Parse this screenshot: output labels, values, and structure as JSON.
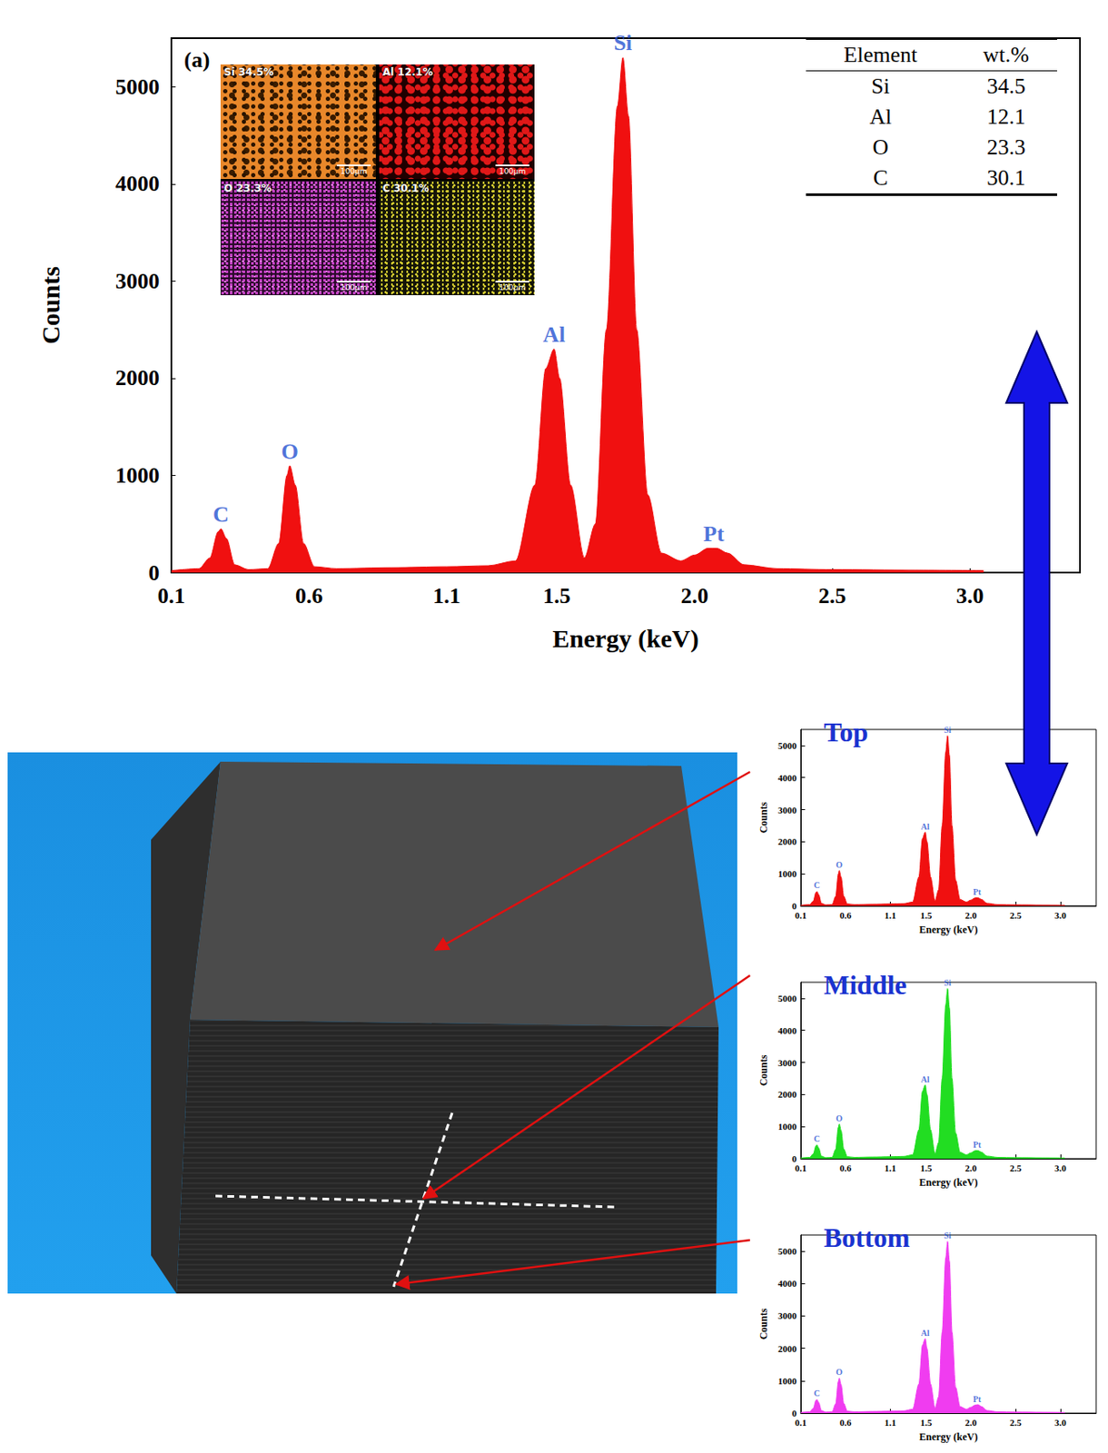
{
  "chart_data": [
    {
      "type": "area",
      "title": "(a)",
      "x_label": "Energy (keV)",
      "y_label": "Counts",
      "x": [
        0.1,
        0.2,
        0.24,
        0.27,
        0.28,
        0.3,
        0.33,
        0.38,
        0.45,
        0.49,
        0.52,
        0.53,
        0.55,
        0.58,
        0.62,
        0.7,
        0.9,
        1.1,
        1.25,
        1.35,
        1.42,
        1.46,
        1.49,
        1.51,
        1.55,
        1.6,
        1.64,
        1.68,
        1.72,
        1.74,
        1.76,
        1.79,
        1.83,
        1.88,
        1.95,
        2.0,
        2.05,
        2.08,
        2.12,
        2.18,
        2.3,
        2.5,
        2.8,
        3.05
      ],
      "values": [
        20,
        40,
        150,
        420,
        450,
        350,
        80,
        30,
        40,
        300,
        1000,
        1100,
        900,
        300,
        60,
        40,
        50,
        60,
        70,
        120,
        900,
        2100,
        2300,
        2000,
        900,
        150,
        500,
        2500,
        4800,
        5300,
        4700,
        2500,
        800,
        200,
        120,
        180,
        250,
        250,
        200,
        80,
        40,
        30,
        25,
        20
      ],
      "color": "#f01010",
      "xlim": [
        0.1,
        3.4
      ],
      "xticks": [
        0.1,
        0.6,
        1.1,
        1.5,
        {
          "value": 2,
          "label": "2.0"
        },
        2.5,
        {
          "value": 3,
          "label": "3.0"
        }
      ],
      "ylim": [
        0,
        5500
      ],
      "yticks": [
        0,
        1000,
        2000,
        3000,
        4000,
        5000
      ],
      "grid": false,
      "annotations": [
        {
          "text": "C",
          "x": 0.28,
          "y": 450
        },
        {
          "text": "O",
          "x": 0.53,
          "y": 1100
        },
        {
          "text": "Al",
          "x": 1.49,
          "y": 2300
        },
        {
          "text": "Si",
          "x": 1.74,
          "y": 5300
        },
        {
          "text": "Pt",
          "x": 2.07,
          "y": 250
        }
      ]
    },
    {
      "type": "area",
      "title": "Top",
      "x_label": "Energy (keV)",
      "y_label": "Counts",
      "x": [
        0.1,
        0.2,
        0.24,
        0.27,
        0.28,
        0.3,
        0.33,
        0.38,
        0.45,
        0.49,
        0.52,
        0.53,
        0.55,
        0.58,
        0.62,
        0.7,
        0.9,
        1.1,
        1.25,
        1.35,
        1.42,
        1.46,
        1.49,
        1.51,
        1.55,
        1.6,
        1.64,
        1.68,
        1.72,
        1.74,
        1.76,
        1.79,
        1.83,
        1.88,
        1.95,
        2.0,
        2.05,
        2.08,
        2.12,
        2.18,
        2.3,
        2.5,
        2.8,
        3.05
      ],
      "values": [
        20,
        40,
        150,
        420,
        450,
        350,
        80,
        30,
        40,
        300,
        1000,
        1100,
        900,
        300,
        60,
        40,
        50,
        60,
        70,
        120,
        900,
        2100,
        2300,
        2000,
        900,
        150,
        500,
        2500,
        4800,
        5300,
        4700,
        2500,
        800,
        200,
        120,
        180,
        250,
        250,
        200,
        80,
        40,
        30,
        25,
        20
      ],
      "color": "#f01010",
      "xlim": [
        0.1,
        3.4
      ],
      "xticks": [
        0.1,
        0.6,
        1.1,
        1.5,
        {
          "value": 2,
          "label": "2.0"
        },
        2.5,
        {
          "value": 3,
          "label": "3.0"
        }
      ],
      "ylim": [
        0,
        5500
      ],
      "yticks": [
        0,
        1000,
        2000,
        3000,
        4000,
        5000
      ],
      "grid": false,
      "annotations": [
        {
          "text": "C",
          "x": 0.28,
          "y": 450
        },
        {
          "text": "O",
          "x": 0.53,
          "y": 1100
        },
        {
          "text": "Al",
          "x": 1.49,
          "y": 2300
        },
        {
          "text": "Si",
          "x": 1.74,
          "y": 5300
        },
        {
          "text": "Pt",
          "x": 2.07,
          "y": 250
        }
      ]
    },
    {
      "type": "area",
      "title": "Middle",
      "x_label": "Energy (keV)",
      "y_label": "Counts",
      "x": [
        0.1,
        0.2,
        0.24,
        0.27,
        0.28,
        0.3,
        0.33,
        0.38,
        0.45,
        0.49,
        0.52,
        0.53,
        0.55,
        0.58,
        0.62,
        0.7,
        0.9,
        1.1,
        1.25,
        1.35,
        1.42,
        1.46,
        1.49,
        1.51,
        1.55,
        1.6,
        1.64,
        1.68,
        1.72,
        1.74,
        1.76,
        1.79,
        1.83,
        1.88,
        1.95,
        2.0,
        2.05,
        2.08,
        2.12,
        2.18,
        2.3,
        2.5,
        2.8,
        3.05
      ],
      "values": [
        20,
        40,
        150,
        400,
        430,
        330,
        80,
        30,
        40,
        290,
        980,
        1080,
        880,
        300,
        60,
        40,
        50,
        60,
        70,
        120,
        900,
        2100,
        2300,
        2000,
        900,
        150,
        500,
        2500,
        4800,
        5300,
        4700,
        2500,
        800,
        200,
        120,
        180,
        250,
        250,
        200,
        80,
        40,
        30,
        25,
        20
      ],
      "color": "#22dd22",
      "xlim": [
        0.1,
        3.4
      ],
      "xticks": [
        0.1,
        0.6,
        1.1,
        1.5,
        {
          "value": 2,
          "label": "2.0"
        },
        2.5,
        {
          "value": 3,
          "label": "3.0"
        }
      ],
      "ylim": [
        0,
        5500
      ],
      "yticks": [
        0,
        1000,
        2000,
        3000,
        4000,
        5000
      ],
      "grid": false,
      "annotations": [
        {
          "text": "C",
          "x": 0.28,
          "y": 430
        },
        {
          "text": "O",
          "x": 0.53,
          "y": 1080
        },
        {
          "text": "Al",
          "x": 1.49,
          "y": 2300
        },
        {
          "text": "Si",
          "x": 1.74,
          "y": 5300
        },
        {
          "text": "Pt",
          "x": 2.07,
          "y": 250
        }
      ]
    },
    {
      "type": "area",
      "title": "Bottom",
      "x_label": "Energy (keV)",
      "y_label": "Counts",
      "x": [
        0.1,
        0.2,
        0.24,
        0.27,
        0.28,
        0.3,
        0.33,
        0.38,
        0.45,
        0.49,
        0.52,
        0.53,
        0.55,
        0.58,
        0.62,
        0.7,
        0.9,
        1.1,
        1.25,
        1.35,
        1.42,
        1.46,
        1.49,
        1.51,
        1.55,
        1.6,
        1.64,
        1.68,
        1.72,
        1.74,
        1.76,
        1.79,
        1.83,
        1.88,
        1.95,
        2.0,
        2.05,
        2.08,
        2.12,
        2.18,
        2.3,
        2.5,
        2.8,
        3.05
      ],
      "values": [
        20,
        40,
        150,
        400,
        420,
        330,
        80,
        30,
        40,
        290,
        980,
        1080,
        880,
        300,
        60,
        40,
        50,
        60,
        70,
        120,
        900,
        2100,
        2300,
        2000,
        900,
        150,
        500,
        2500,
        4800,
        5300,
        4700,
        2500,
        800,
        200,
        120,
        180,
        250,
        260,
        200,
        80,
        40,
        30,
        25,
        20
      ],
      "color": "#f03cf0",
      "xlim": [
        0.1,
        3.4
      ],
      "xticks": [
        0.1,
        0.6,
        1.1,
        1.5,
        {
          "value": 2,
          "label": "2.0"
        },
        2.5,
        {
          "value": 3,
          "label": "3.0"
        }
      ],
      "ylim": [
        0,
        5500
      ],
      "yticks": [
        0,
        1000,
        2000,
        3000,
        4000,
        5000
      ],
      "grid": false,
      "annotations": [
        {
          "text": "C",
          "x": 0.28,
          "y": 420
        },
        {
          "text": "O",
          "x": 0.53,
          "y": 1080
        },
        {
          "text": "Al",
          "x": 1.49,
          "y": 2300
        },
        {
          "text": "Si",
          "x": 1.74,
          "y": 5300
        },
        {
          "text": "Pt",
          "x": 2.07,
          "y": 260
        }
      ]
    }
  ],
  "table": {
    "columns": [
      "Element",
      "wt.%"
    ],
    "rows": [
      [
        "Si",
        34.5
      ],
      [
        "Al",
        12.1
      ],
      [
        "O",
        23.3
      ],
      [
        "C",
        30.1
      ]
    ]
  },
  "element_maps": [
    {
      "label": "Si 34.5%",
      "color": "#e8872a",
      "scale_bar": "100μm"
    },
    {
      "label": "Al 12.1%",
      "color": "#e01818",
      "scale_bar": "100μm"
    },
    {
      "label": "O 23.3%",
      "color": "#c040c0",
      "scale_bar": "100μm"
    },
    {
      "label": "C 30.1%",
      "color": "#d8d030",
      "scale_bar": "100μm"
    }
  ]
}
